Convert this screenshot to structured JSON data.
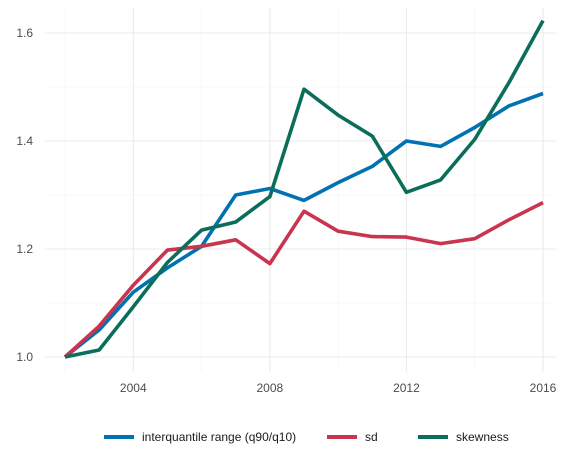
{
  "chart_data": {
    "type": "line",
    "title": "",
    "xlabel": "",
    "ylabel": "",
    "x": [
      2002,
      2003,
      2004,
      2005,
      2006,
      2007,
      2008,
      2009,
      2010,
      2011,
      2012,
      2013,
      2014,
      2015,
      2016
    ],
    "xlim": [
      2002,
      2016
    ],
    "ylim": [
      1.0,
      1.62
    ],
    "x_ticks": [
      2004,
      2008,
      2012,
      2016
    ],
    "x_tick_labels": [
      "2004",
      "2008",
      "2012",
      "2016"
    ],
    "y_ticks": [
      1.0,
      1.2,
      1.4,
      1.6
    ],
    "y_tick_labels": [
      "1.0",
      "1.2",
      "1.4",
      "1.6"
    ],
    "grid": true,
    "legend_position": "bottom",
    "series": [
      {
        "name": "interquantile range (q90/q10)",
        "color": "#0072b2",
        "values": [
          1.0,
          1.05,
          1.12,
          1.165,
          1.205,
          1.3,
          1.312,
          1.29,
          1.323,
          1.353,
          1.4,
          1.39,
          1.425,
          1.465,
          1.488
        ]
      },
      {
        "name": "sd",
        "color": "#c9344f",
        "values": [
          1.0,
          1.057,
          1.133,
          1.198,
          1.205,
          1.217,
          1.173,
          1.27,
          1.233,
          1.223,
          1.222,
          1.21,
          1.219,
          1.254,
          1.286
        ]
      },
      {
        "name": "skewness",
        "color": "#0a6e5a",
        "values": [
          1.0,
          1.013,
          1.093,
          1.175,
          1.235,
          1.25,
          1.297,
          1.496,
          1.448,
          1.409,
          1.305,
          1.328,
          1.403,
          1.508,
          1.623
        ]
      }
    ]
  }
}
